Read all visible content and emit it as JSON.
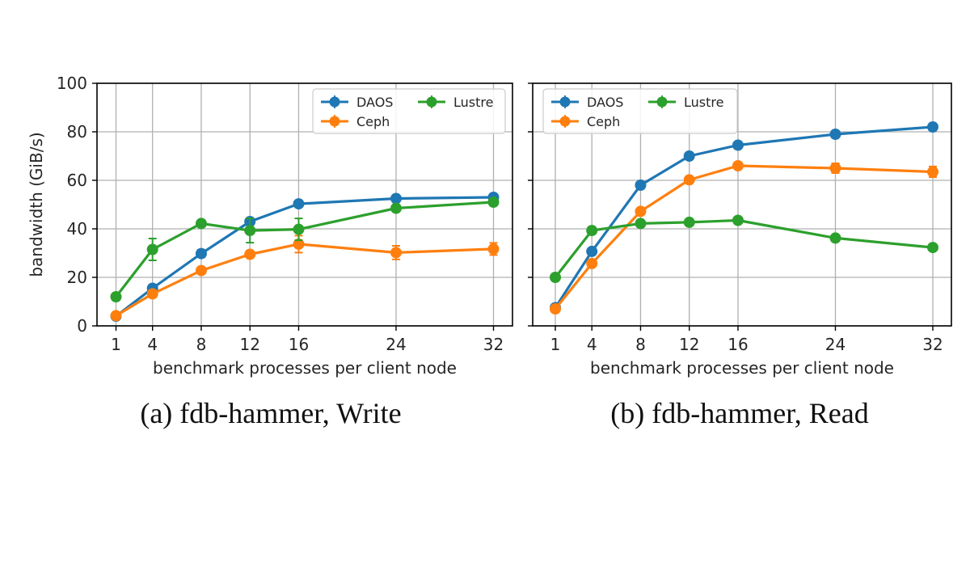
{
  "chart_data": [
    {
      "type": "line",
      "caption": "(a) fdb-hammer, Write",
      "xlabel": "benchmark processes per client node",
      "ylabel": "bandwidth (GiB/s)",
      "x": [
        1,
        4,
        8,
        12,
        16,
        24,
        32
      ],
      "xticks": [
        "1",
        "4",
        "8",
        "12",
        "16",
        "24",
        "32"
      ],
      "ylim": [
        0,
        100
      ],
      "yticks": [
        "0",
        "20",
        "40",
        "60",
        "80",
        "100"
      ],
      "grid": true,
      "legend_position": "upper-right",
      "series": [
        {
          "name": "DAOS",
          "color": "#1f77b4",
          "values": [
            4,
            15.5,
            29.8,
            43,
            50.3,
            52.5,
            53
          ],
          "err": [
            0.5,
            1,
            1.5,
            1,
            1,
            0.8,
            0.8
          ]
        },
        {
          "name": "Ceph",
          "color": "#ff7f0e",
          "values": [
            4.2,
            13.2,
            22.8,
            29.5,
            33.7,
            30.2,
            31.7
          ],
          "err": [
            0.5,
            1,
            1,
            1,
            3.5,
            2.8,
            2.5
          ]
        },
        {
          "name": "Lustre",
          "color": "#2ca02c",
          "values": [
            12,
            31.5,
            42.2,
            39.3,
            39.8,
            48.5,
            51
          ],
          "err": [
            0.5,
            4.5,
            1,
            5,
            4.5,
            1,
            1
          ]
        }
      ]
    },
    {
      "type": "line",
      "caption": "(b) fdb-hammer, Read",
      "xlabel": "benchmark processes per client node",
      "ylabel": "",
      "x": [
        1,
        4,
        8,
        12,
        16,
        24,
        32
      ],
      "xticks": [
        "1",
        "4",
        "8",
        "12",
        "16",
        "24",
        "32"
      ],
      "ylim": [
        0,
        100
      ],
      "yticks": [],
      "grid": true,
      "legend_position": "upper-left",
      "series": [
        {
          "name": "DAOS",
          "color": "#1f77b4",
          "values": [
            7.5,
            30.7,
            58,
            70,
            74.5,
            79,
            82
          ],
          "err": [
            0.5,
            1,
            1,
            1,
            1,
            1,
            1
          ]
        },
        {
          "name": "Ceph",
          "color": "#ff7f0e",
          "values": [
            7,
            25.7,
            47.2,
            60.2,
            66,
            65,
            63.5
          ],
          "err": [
            0.5,
            1,
            1,
            1,
            1,
            2,
            2.2
          ]
        },
        {
          "name": "Lustre",
          "color": "#2ca02c",
          "values": [
            20,
            39.3,
            42.2,
            42.7,
            43.5,
            36.2,
            32.3
          ],
          "err": [
            0.5,
            1,
            1,
            1,
            1,
            1,
            1
          ]
        }
      ]
    }
  ]
}
